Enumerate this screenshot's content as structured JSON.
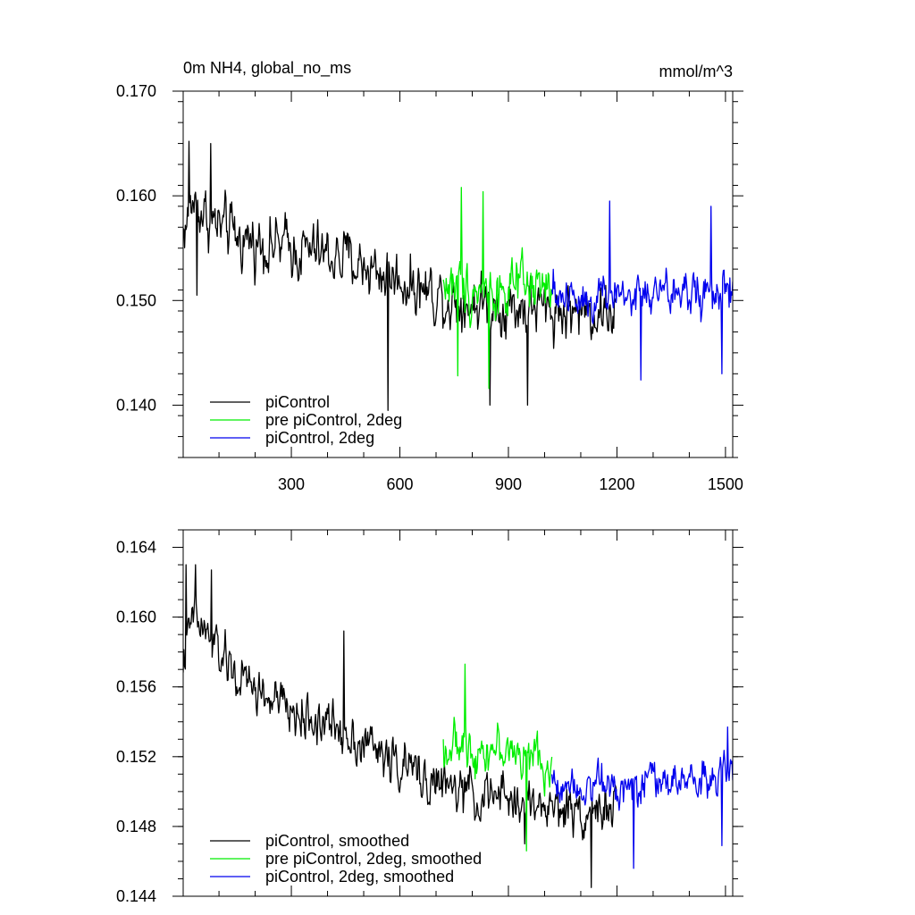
{
  "chart_data": [
    {
      "type": "line",
      "title": "0m NH4, global_no_ms",
      "units": "mmol/m^3",
      "xlim": [
        1,
        1520
      ],
      "ylim": [
        0.135,
        0.17
      ],
      "xticks": [
        300,
        600,
        900,
        1200,
        1500
      ],
      "yticks": [
        0.14,
        0.15,
        0.16,
        0.17
      ],
      "yminor_step": 0.002,
      "x_tick_labels": [
        "300",
        "600",
        "900",
        "1200",
        "1500"
      ],
      "y_tick_labels": [
        "0.140",
        "0.150",
        "0.160",
        "0.170"
      ],
      "legend_position": "bottom-left",
      "series": [
        {
          "name": "piControl",
          "color": "#000000",
          "x_start": 1,
          "x_end": 1200,
          "level": [
            [
              1,
              0.1565
            ],
            [
              30,
              0.1595
            ],
            [
              80,
              0.1575
            ],
            [
              150,
              0.156
            ],
            [
              300,
              0.155
            ],
            [
              450,
              0.154
            ],
            [
              600,
              0.152
            ],
            [
              750,
              0.15
            ],
            [
              900,
              0.1495
            ],
            [
              1050,
              0.149
            ],
            [
              1200,
              0.149
            ]
          ],
          "noise": 0.004,
          "spikes": [
            [
              18,
              0.1652
            ],
            [
              78,
              0.165
            ],
            [
              40,
              0.1505
            ],
            [
              568,
              0.1395
            ],
            [
              953,
              0.14
            ],
            [
              850,
              0.14
            ]
          ]
        },
        {
          "name": "pre piControl, 2deg",
          "color": "#00ee00",
          "x_start": 720,
          "x_end": 1020,
          "level": [
            [
              720,
              0.1515
            ],
            [
              870,
              0.151
            ],
            [
              1020,
              0.151
            ]
          ],
          "noise": 0.0038,
          "spikes": [
            [
              770,
              0.1608
            ],
            [
              830,
              0.1604
            ],
            [
              845,
              0.1416
            ],
            [
              760,
              0.1428
            ]
          ]
        },
        {
          "name": "piControl, 2deg",
          "color": "#0000ee",
          "x_start": 1020,
          "x_end": 1520,
          "level": [
            [
              1020,
              0.1505
            ],
            [
              1270,
              0.1505
            ],
            [
              1520,
              0.1508
            ]
          ],
          "noise": 0.0033,
          "spikes": [
            [
              1180,
              0.1595
            ],
            [
              1460,
              0.159
            ],
            [
              1265,
              0.1424
            ],
            [
              1490,
              0.143
            ]
          ]
        }
      ]
    },
    {
      "type": "line",
      "title": "",
      "xlim": [
        1,
        1520
      ],
      "ylim": [
        0.144,
        0.165
      ],
      "xticks": [
        300,
        600,
        900,
        1200,
        1500
      ],
      "yticks": [
        0.144,
        0.148,
        0.152,
        0.156,
        0.16,
        0.164
      ],
      "yminor_step": 0.001,
      "y_tick_labels": [
        "0.144",
        "0.148",
        "0.152",
        "0.156",
        "0.160",
        "0.164"
      ],
      "legend_position": "bottom-left",
      "series": [
        {
          "name": "piControl, smoothed",
          "color": "#000000",
          "x_start": 1,
          "x_end": 1200,
          "level": [
            [
              1,
              0.1575
            ],
            [
              30,
              0.16
            ],
            [
              80,
              0.1585
            ],
            [
              150,
              0.1565
            ],
            [
              300,
              0.1545
            ],
            [
              450,
              0.1535
            ],
            [
              600,
              0.1515
            ],
            [
              750,
              0.15
            ],
            [
              900,
              0.1495
            ],
            [
              1050,
              0.149
            ],
            [
              1200,
              0.149
            ]
          ],
          "noise": 0.002,
          "spikes": [
            [
              10,
              0.163
            ],
            [
              35,
              0.163
            ],
            [
              80,
              0.1627
            ],
            [
              445,
              0.1592
            ],
            [
              1130,
              0.1445
            ],
            [
              945,
              0.147
            ]
          ]
        },
        {
          "name": "pre piControl, 2deg, smoothed",
          "color": "#00ee00",
          "x_start": 720,
          "x_end": 1020,
          "level": [
            [
              720,
              0.1525
            ],
            [
              870,
              0.1525
            ],
            [
              1020,
              0.1515
            ]
          ],
          "noise": 0.0018,
          "spikes": [
            [
              780,
              0.1573
            ],
            [
              950,
              0.1466
            ]
          ]
        },
        {
          "name": "piControl, 2deg, smoothed",
          "color": "#0000ee",
          "x_start": 1020,
          "x_end": 1520,
          "level": [
            [
              1020,
              0.1505
            ],
            [
              1270,
              0.1505
            ],
            [
              1520,
              0.1508
            ]
          ],
          "noise": 0.0016,
          "spikes": [
            [
              1245,
              0.1456
            ],
            [
              1490,
              0.1469
            ],
            [
              1505,
              0.1537
            ]
          ]
        }
      ]
    }
  ]
}
